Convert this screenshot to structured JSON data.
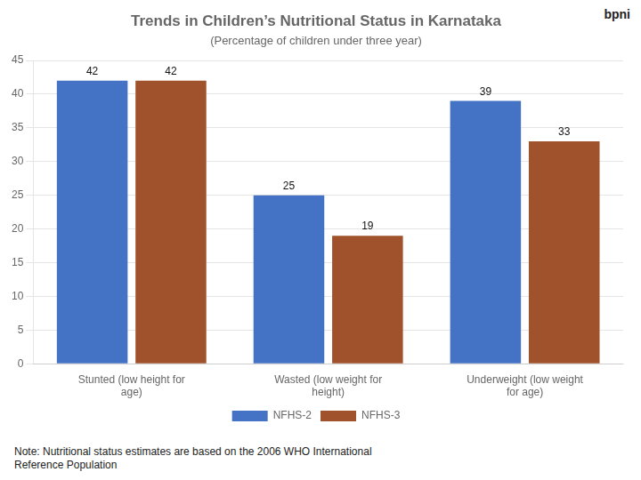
{
  "chart_data": {
    "type": "bar",
    "title": "Trends in Children’s Nutritional Status in Karnataka",
    "subtitle": "(Percentage of children under three year)",
    "annotations": [
      "bpni",
      "Note: Nutritional status estimates are based on the 2006 WHO International\nReference Population"
    ],
    "categories": [
      "Stunted (low height for\nage)",
      "Wasted (low weight for\nheight)",
      "Underweight (low weight\nfor age)"
    ],
    "series": [
      {
        "name": "NFHS-2",
        "color": "#4472C4",
        "values": [
          42,
          25,
          39
        ]
      },
      {
        "name": "NFHS-3",
        "color": "#A0522D",
        "values": [
          42,
          19,
          33
        ]
      }
    ],
    "ylim": [
      0,
      45
    ],
    "yticks": [
      0,
      5,
      10,
      15,
      20,
      25,
      30,
      35,
      40,
      45
    ],
    "grid": true,
    "legend": "bottom",
    "data_labels": true
  }
}
